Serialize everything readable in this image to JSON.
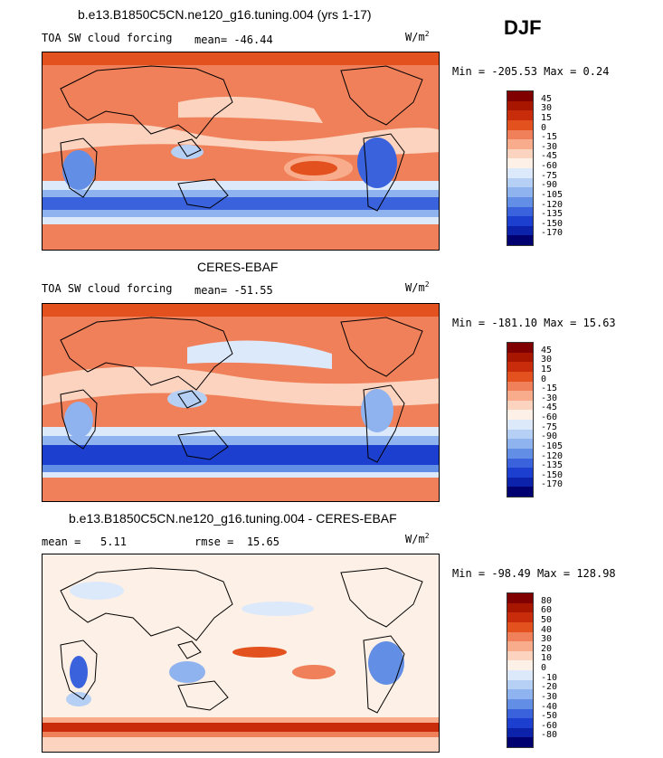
{
  "season": "DJF",
  "units": "W/m",
  "units_sup": "2",
  "panels": [
    {
      "title": "b.e13.B1850C5CN.ne120_g16.tuning.004 (yrs 1-17)",
      "variable": "TOA SW cloud forcing",
      "mean_label": "mean=",
      "mean": "-46.44",
      "min_label": "Min =",
      "min": "-205.53",
      "max_label": "Max =",
      "max": "0.24",
      "legend": [
        "45",
        "30",
        "15",
        "0",
        "-15",
        "-30",
        "-45",
        "-60",
        "-75",
        "-90",
        "-105",
        "-120",
        "-135",
        "-150",
        "-170"
      ],
      "colors": [
        "#800000",
        "#a81600",
        "#c82c0a",
        "#e3521e",
        "#f0805a",
        "#f9ac8c",
        "#fbd3bf",
        "#fdf0e6",
        "#dce9fb",
        "#b5cff5",
        "#8fb3ef",
        "#628ee6",
        "#3a62dd",
        "#1c3fcf",
        "#0c22ab",
        "#000070"
      ]
    },
    {
      "title": "CERES-EBAF",
      "variable": "TOA SW cloud forcing",
      "mean_label": "mean=",
      "mean": "-51.55",
      "min_label": "Min =",
      "min": "-181.10",
      "max_label": "Max =",
      "max": "15.63",
      "legend": [
        "45",
        "30",
        "15",
        "0",
        "-15",
        "-30",
        "-45",
        "-60",
        "-75",
        "-90",
        "-105",
        "-120",
        "-135",
        "-150",
        "-170"
      ],
      "colors": [
        "#800000",
        "#a81600",
        "#c82c0a",
        "#e3521e",
        "#f0805a",
        "#f9ac8c",
        "#fbd3bf",
        "#fdf0e6",
        "#dce9fb",
        "#b5cff5",
        "#8fb3ef",
        "#628ee6",
        "#3a62dd",
        "#1c3fcf",
        "#0c22ab",
        "#000070"
      ]
    },
    {
      "title": "b.e13.B1850C5CN.ne120_g16.tuning.004 - CERES-EBAF",
      "mean_label": "mean =",
      "mean": "5.11",
      "rmse_label": "rmse =",
      "rmse": "15.65",
      "min_label": "Min =",
      "min": "-98.49",
      "max_label": "Max =",
      "max": "128.98",
      "legend": [
        "80",
        "60",
        "50",
        "40",
        "30",
        "20",
        "10",
        "0",
        "-10",
        "-20",
        "-30",
        "-40",
        "-50",
        "-60",
        "-80"
      ],
      "colors": [
        "#800000",
        "#a81600",
        "#c82c0a",
        "#e3521e",
        "#f0805a",
        "#f9ac8c",
        "#fbd3bf",
        "#fdf0e6",
        "#dce9fb",
        "#b5cff5",
        "#8fb3ef",
        "#628ee6",
        "#3a62dd",
        "#1c3fcf",
        "#0c22ab",
        "#000070"
      ]
    }
  ]
}
